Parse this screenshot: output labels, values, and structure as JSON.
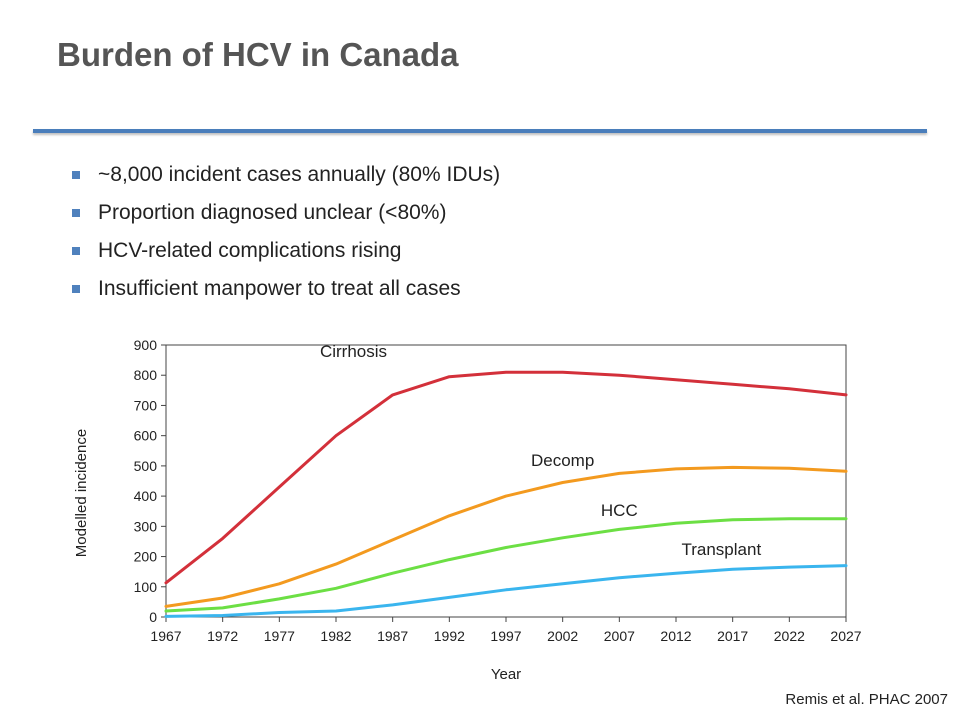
{
  "slide": {
    "title": "Burden of HCV in Canada",
    "bullets": [
      "~8,000 incident cases annually (80% IDUs)",
      "Proportion diagnosed unclear (<80%)",
      "HCV-related complications rising",
      "Insufficient manpower to treat all cases"
    ],
    "citation": "Remis et al. PHAC 2007"
  },
  "colors": {
    "title": "#555555",
    "rule": "#4a7ebb",
    "bullet": "#4f81bd"
  },
  "chart_data": {
    "type": "line",
    "xlabel": "Year",
    "ylabel": "Modelled incidence",
    "xlim": [
      1967,
      2027
    ],
    "ylim": [
      0,
      900
    ],
    "x_ticks": [
      1967,
      1972,
      1977,
      1982,
      1987,
      1992,
      1997,
      2002,
      2007,
      2012,
      2017,
      2022,
      2027
    ],
    "y_ticks": [
      0,
      100,
      200,
      300,
      400,
      500,
      600,
      700,
      800,
      900
    ],
    "grid": false,
    "legend": "none",
    "x": [
      1967,
      1972,
      1977,
      1982,
      1987,
      1992,
      1997,
      2002,
      2007,
      2012,
      2017,
      2022,
      2027
    ],
    "series": [
      {
        "name": "Cirrhosis",
        "color": "#d3303a",
        "values": [
          113,
          260,
          430,
          600,
          735,
          795,
          810,
          810,
          800,
          785,
          770,
          755,
          735
        ]
      },
      {
        "name": "Decomp",
        "color": "#f39a1f",
        "values": [
          35,
          63,
          110,
          175,
          255,
          335,
          400,
          445,
          475,
          490,
          495,
          492,
          482
        ]
      },
      {
        "name": "HCC",
        "color": "#6cdf44",
        "values": [
          20,
          30,
          60,
          95,
          145,
          190,
          230,
          262,
          290,
          310,
          322,
          325,
          325
        ]
      },
      {
        "name": "Transplant",
        "color": "#3ab5ee",
        "values": [
          2,
          5,
          15,
          20,
          40,
          65,
          90,
          110,
          130,
          145,
          158,
          165,
          170
        ]
      }
    ]
  }
}
